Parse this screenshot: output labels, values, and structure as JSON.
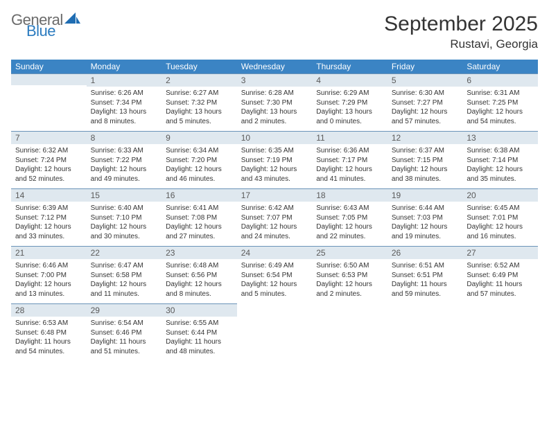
{
  "brand": {
    "word1": "General",
    "word2": "Blue",
    "word1_color": "#6b6b6b",
    "word2_color": "#2b7bbf"
  },
  "title": "September 2025",
  "location": "Rustavi, Georgia",
  "header_bg": "#3b84c4",
  "daybar_bg": "#dfe8ef",
  "daybar_border": "#6a93b8",
  "weekdays": [
    "Sunday",
    "Monday",
    "Tuesday",
    "Wednesday",
    "Thursday",
    "Friday",
    "Saturday"
  ],
  "start_offset": 1,
  "days": [
    {
      "n": 1,
      "sr": "6:26 AM",
      "ss": "7:34 PM",
      "dl": "13 hours and 8 minutes."
    },
    {
      "n": 2,
      "sr": "6:27 AM",
      "ss": "7:32 PM",
      "dl": "13 hours and 5 minutes."
    },
    {
      "n": 3,
      "sr": "6:28 AM",
      "ss": "7:30 PM",
      "dl": "13 hours and 2 minutes."
    },
    {
      "n": 4,
      "sr": "6:29 AM",
      "ss": "7:29 PM",
      "dl": "13 hours and 0 minutes."
    },
    {
      "n": 5,
      "sr": "6:30 AM",
      "ss": "7:27 PM",
      "dl": "12 hours and 57 minutes."
    },
    {
      "n": 6,
      "sr": "6:31 AM",
      "ss": "7:25 PM",
      "dl": "12 hours and 54 minutes."
    },
    {
      "n": 7,
      "sr": "6:32 AM",
      "ss": "7:24 PM",
      "dl": "12 hours and 52 minutes."
    },
    {
      "n": 8,
      "sr": "6:33 AM",
      "ss": "7:22 PM",
      "dl": "12 hours and 49 minutes."
    },
    {
      "n": 9,
      "sr": "6:34 AM",
      "ss": "7:20 PM",
      "dl": "12 hours and 46 minutes."
    },
    {
      "n": 10,
      "sr": "6:35 AM",
      "ss": "7:19 PM",
      "dl": "12 hours and 43 minutes."
    },
    {
      "n": 11,
      "sr": "6:36 AM",
      "ss": "7:17 PM",
      "dl": "12 hours and 41 minutes."
    },
    {
      "n": 12,
      "sr": "6:37 AM",
      "ss": "7:15 PM",
      "dl": "12 hours and 38 minutes."
    },
    {
      "n": 13,
      "sr": "6:38 AM",
      "ss": "7:14 PM",
      "dl": "12 hours and 35 minutes."
    },
    {
      "n": 14,
      "sr": "6:39 AM",
      "ss": "7:12 PM",
      "dl": "12 hours and 33 minutes."
    },
    {
      "n": 15,
      "sr": "6:40 AM",
      "ss": "7:10 PM",
      "dl": "12 hours and 30 minutes."
    },
    {
      "n": 16,
      "sr": "6:41 AM",
      "ss": "7:08 PM",
      "dl": "12 hours and 27 minutes."
    },
    {
      "n": 17,
      "sr": "6:42 AM",
      "ss": "7:07 PM",
      "dl": "12 hours and 24 minutes."
    },
    {
      "n": 18,
      "sr": "6:43 AM",
      "ss": "7:05 PM",
      "dl": "12 hours and 22 minutes."
    },
    {
      "n": 19,
      "sr": "6:44 AM",
      "ss": "7:03 PM",
      "dl": "12 hours and 19 minutes."
    },
    {
      "n": 20,
      "sr": "6:45 AM",
      "ss": "7:01 PM",
      "dl": "12 hours and 16 minutes."
    },
    {
      "n": 21,
      "sr": "6:46 AM",
      "ss": "7:00 PM",
      "dl": "12 hours and 13 minutes."
    },
    {
      "n": 22,
      "sr": "6:47 AM",
      "ss": "6:58 PM",
      "dl": "12 hours and 11 minutes."
    },
    {
      "n": 23,
      "sr": "6:48 AM",
      "ss": "6:56 PM",
      "dl": "12 hours and 8 minutes."
    },
    {
      "n": 24,
      "sr": "6:49 AM",
      "ss": "6:54 PM",
      "dl": "12 hours and 5 minutes."
    },
    {
      "n": 25,
      "sr": "6:50 AM",
      "ss": "6:53 PM",
      "dl": "12 hours and 2 minutes."
    },
    {
      "n": 26,
      "sr": "6:51 AM",
      "ss": "6:51 PM",
      "dl": "11 hours and 59 minutes."
    },
    {
      "n": 27,
      "sr": "6:52 AM",
      "ss": "6:49 PM",
      "dl": "11 hours and 57 minutes."
    },
    {
      "n": 28,
      "sr": "6:53 AM",
      "ss": "6:48 PM",
      "dl": "11 hours and 54 minutes."
    },
    {
      "n": 29,
      "sr": "6:54 AM",
      "ss": "6:46 PM",
      "dl": "11 hours and 51 minutes."
    },
    {
      "n": 30,
      "sr": "6:55 AM",
      "ss": "6:44 PM",
      "dl": "11 hours and 48 minutes."
    }
  ],
  "labels": {
    "sunrise": "Sunrise:",
    "sunset": "Sunset:",
    "daylight": "Daylight:"
  }
}
